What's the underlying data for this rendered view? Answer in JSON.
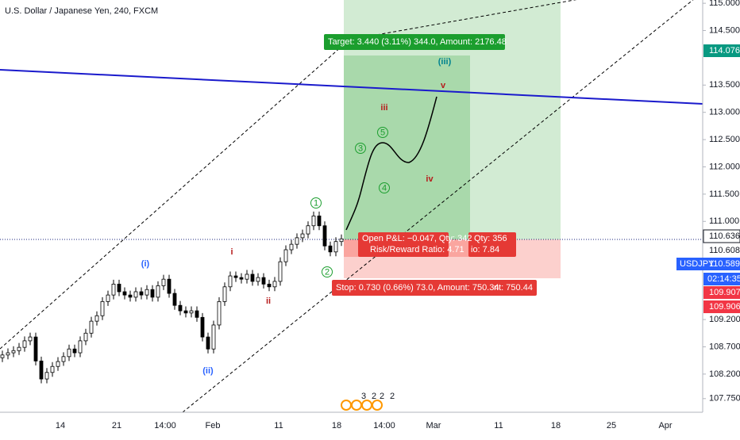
{
  "chart_data": {
    "type": "candlestick",
    "title": "U.S. Dollar / Japanese Yen, 240, FXCM",
    "up_color": "#ffffff",
    "down_color": "#000000",
    "ylim": [
      107.5,
      115.06
    ],
    "yticks": [
      {
        "value": 107.75,
        "label": "107.750"
      },
      {
        "value": 108.2,
        "label": "108.200"
      },
      {
        "value": 108.7,
        "label": "108.700"
      },
      {
        "value": 109.2,
        "label": "109.200"
      },
      {
        "value": 111.0,
        "label": "111.000"
      },
      {
        "value": 111.5,
        "label": "111.500"
      },
      {
        "value": 112.0,
        "label": "112.000"
      },
      {
        "value": 112.5,
        "label": "112.500"
      },
      {
        "value": 113.0,
        "label": "113.000"
      },
      {
        "value": 113.5,
        "label": "113.500"
      },
      {
        "value": 114.5,
        "label": "114.500"
      },
      {
        "value": 115.0,
        "label": "115.000"
      }
    ],
    "x_labels": [
      "14",
      "21",
      "14:00",
      "Feb",
      "11",
      "18",
      "14:00",
      "Mar",
      "11",
      "18",
      "25",
      "Apr"
    ],
    "open": [
      108.5,
      108.55,
      108.59,
      108.63,
      108.69,
      108.81,
      108.88,
      108.44,
      108.11,
      108.23,
      108.34,
      108.43,
      108.52,
      108.66,
      108.59,
      108.81,
      108.95,
      109.17,
      109.27,
      109.53,
      109.65,
      109.85,
      109.71,
      109.65,
      109.61,
      109.71,
      109.65,
      109.75,
      109.61,
      109.82,
      109.94,
      109.68,
      109.46,
      109.36,
      109.32,
      109.36,
      109.24,
      108.88,
      108.66,
      109.1,
      109.53,
      109.8,
      110.0,
      109.97,
      109.94,
      110.03,
      109.9,
      109.97,
      109.85,
      109.8,
      109.9,
      110.26,
      110.48,
      110.58,
      110.7,
      110.77,
      110.92,
      111.1,
      110.92,
      110.55,
      110.44,
      110.63
    ],
    "high": [
      108.63,
      108.67,
      108.71,
      108.77,
      108.89,
      108.96,
      108.96,
      108.52,
      108.31,
      108.42,
      108.51,
      108.6,
      108.74,
      108.74,
      108.89,
      109.03,
      109.25,
      109.35,
      109.61,
      109.73,
      109.93,
      109.93,
      109.79,
      109.73,
      109.79,
      109.79,
      109.83,
      109.83,
      109.9,
      110.02,
      110.02,
      109.76,
      109.54,
      109.44,
      109.44,
      109.44,
      109.32,
      108.96,
      109.18,
      109.61,
      109.88,
      110.08,
      110.08,
      110.05,
      110.11,
      110.11,
      110.05,
      110.05,
      109.93,
      109.98,
      110.34,
      110.56,
      110.66,
      110.78,
      110.85,
      111.0,
      111.18,
      111.18,
      111.0,
      110.63,
      110.71,
      110.76
    ],
    "low": [
      108.42,
      108.47,
      108.51,
      108.55,
      108.61,
      108.73,
      108.36,
      108.03,
      108.03,
      108.15,
      108.26,
      108.35,
      108.44,
      108.51,
      108.51,
      108.73,
      108.87,
      109.09,
      109.19,
      109.45,
      109.57,
      109.63,
      109.57,
      109.53,
      109.53,
      109.57,
      109.57,
      109.53,
      109.53,
      109.74,
      109.6,
      109.38,
      109.28,
      109.24,
      109.24,
      109.16,
      108.8,
      108.58,
      108.58,
      109.02,
      109.45,
      109.72,
      109.89,
      109.86,
      109.86,
      109.82,
      109.82,
      109.77,
      109.72,
      109.72,
      109.82,
      110.18,
      110.4,
      110.5,
      110.62,
      110.69,
      110.84,
      110.84,
      110.47,
      110.36,
      110.36,
      110.55
    ],
    "close": [
      108.55,
      108.59,
      108.63,
      108.69,
      108.81,
      108.88,
      108.44,
      108.11,
      108.23,
      108.34,
      108.43,
      108.52,
      108.66,
      108.59,
      108.81,
      108.95,
      109.17,
      109.27,
      109.53,
      109.65,
      109.85,
      109.71,
      109.65,
      109.61,
      109.71,
      109.65,
      109.75,
      109.61,
      109.82,
      109.94,
      109.68,
      109.46,
      109.36,
      109.32,
      109.36,
      109.24,
      108.88,
      108.66,
      109.1,
      109.53,
      109.8,
      110.0,
      109.97,
      109.94,
      110.03,
      109.9,
      109.97,
      109.85,
      109.8,
      109.9,
      110.26,
      110.48,
      110.58,
      110.7,
      110.77,
      110.92,
      111.1,
      110.92,
      110.55,
      110.44,
      110.63,
      110.68
    ],
    "price_tags": [
      {
        "value": 114.076,
        "label": "114.076",
        "color": "#089981"
      },
      {
        "value": 110.636,
        "label": "110.636",
        "color": "#ffffff"
      },
      {
        "value": 110.608,
        "label": "110.608",
        "color": "#ffffff"
      },
      {
        "value": 110.589,
        "label": "110.589",
        "color": "#2962ff"
      },
      {
        "value": 109.907,
        "label": "109.907",
        "color": "#f23645"
      },
      {
        "value": 109.906,
        "label": "109.906",
        "color": "#f23645"
      }
    ],
    "symbol": "USDJPY",
    "countdown": "02:14:35",
    "target_label": "Target: 3.440 (3.11%) 344.0, Amount: 2176.48",
    "stop_label": "Stop: 0.730 (0.66%) 73.0, Amount: 750.34",
    "stop_label_behind": "nt: 750.44",
    "pnl_label": "Open P&L: −0.047, Qty: 342",
    "rr_label": "Risk/Reward Ratio: 4.71",
    "qty_behind": "Qty: 356",
    "rr_behind": "io: 7.84",
    "annotations": [
      {
        "text": "(i)",
        "color": "#2962ff"
      },
      {
        "text": "i",
        "color": "#b71c1c"
      },
      {
        "text": "ii",
        "color": "#b71c1c"
      },
      {
        "text": "(ii)",
        "color": "#2962ff"
      },
      {
        "text": "1",
        "color": "#1b9e2e"
      },
      {
        "text": "2",
        "color": "#1b9e2e"
      },
      {
        "text": "(iii)",
        "color": "#00838f"
      },
      {
        "text": "iii",
        "color": "#b71c1c"
      },
      {
        "text": "3",
        "color": "#1b9e2e"
      },
      {
        "text": "4",
        "color": "#1b9e2e"
      },
      {
        "text": "5",
        "color": "#1b9e2e"
      },
      {
        "text": "iv",
        "color": "#b71c1c"
      },
      {
        "text": "v",
        "color": "#b71c1c"
      }
    ],
    "event_marks": [
      "3",
      "2",
      "2",
      "2"
    ]
  }
}
